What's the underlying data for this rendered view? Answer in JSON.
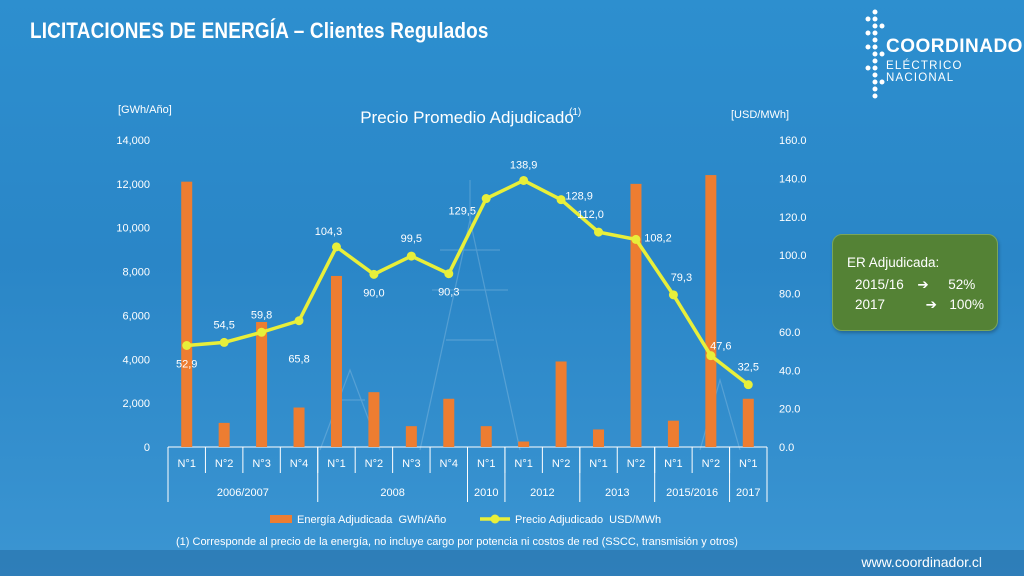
{
  "slide": {
    "title": "LICITACIONES DE ENERGÍA – Clientes Regulados",
    "footnote": "(1) Corresponde al precio de la energía, no incluye cargo por potencia ni costos de red  (SSCC, transmisión y otros)",
    "website": "www.coordinador.cl"
  },
  "logo": {
    "line1": "COORDINADOR",
    "line2": "ELÉCTRICO NACIONAL"
  },
  "er_box": {
    "title": "ER Adjudicada:",
    "row1_year": "2015/16",
    "row1_value": "52%",
    "row2_year": "2017",
    "row2_value": "100%",
    "arrow": "➔"
  },
  "chart_data": {
    "type": "bar+line",
    "title": "Precio Promedio Adjudicado",
    "title_superscript": "(1)",
    "y_left_label": "[GWh/Año]",
    "y_right_label": "[USD/MWh]",
    "y_left_ticks": [
      "0",
      "2,000",
      "4,000",
      "6,000",
      "8,000",
      "10,000",
      "12,000",
      "14,000"
    ],
    "y_right_ticks": [
      "0.0",
      "20.0",
      "40.0",
      "60.0",
      "80.0",
      "100.0",
      "120.0",
      "140.0",
      "160.0"
    ],
    "ylim_left": [
      0,
      14000
    ],
    "ylim_right": [
      0,
      160
    ],
    "categories": [
      "N°1",
      "N°2",
      "N°3",
      "N°4",
      "N°1",
      "N°2",
      "N°3",
      "N°4",
      "N°1",
      "N°1",
      "N°2",
      "N°1",
      "N°2",
      "N°1",
      "N°2",
      "N°1"
    ],
    "groups": [
      {
        "label": "2006/2007",
        "count": 4
      },
      {
        "label": "2008",
        "count": 4
      },
      {
        "label": "2010",
        "count": 1
      },
      {
        "label": "2012",
        "count": 2
      },
      {
        "label": "2013",
        "count": 2
      },
      {
        "label": "2015/2016",
        "count": 2
      },
      {
        "label": "2017",
        "count": 1
      }
    ],
    "series": [
      {
        "name": "Energía Adjudicada  GWh/Año",
        "type": "bar",
        "axis": "left",
        "color": "#ed7d31",
        "values": [
          12100,
          1100,
          5700,
          1800,
          7800,
          2500,
          950,
          2200,
          950,
          250,
          3900,
          800,
          12000,
          1200,
          12400,
          2200
        ]
      },
      {
        "name": "Precio Adjudicado  USD/MWh",
        "type": "line",
        "axis": "right",
        "color": "#e8ef3a",
        "values": [
          52.9,
          54.5,
          59.8,
          65.8,
          104.3,
          90.0,
          99.5,
          90.3,
          129.5,
          138.9,
          128.9,
          112.0,
          108.2,
          79.3,
          47.6,
          32.5
        ],
        "labels": [
          "52,9",
          "54,5",
          "59,8",
          "65,8",
          "104,3",
          "90,0",
          "99,5",
          "90,3",
          "129,5",
          "138,9",
          "128,9",
          "112,0",
          "108,2",
          "79,3",
          "47,6",
          "32,5"
        ]
      }
    ],
    "legend_position": "bottom",
    "grid": false
  }
}
